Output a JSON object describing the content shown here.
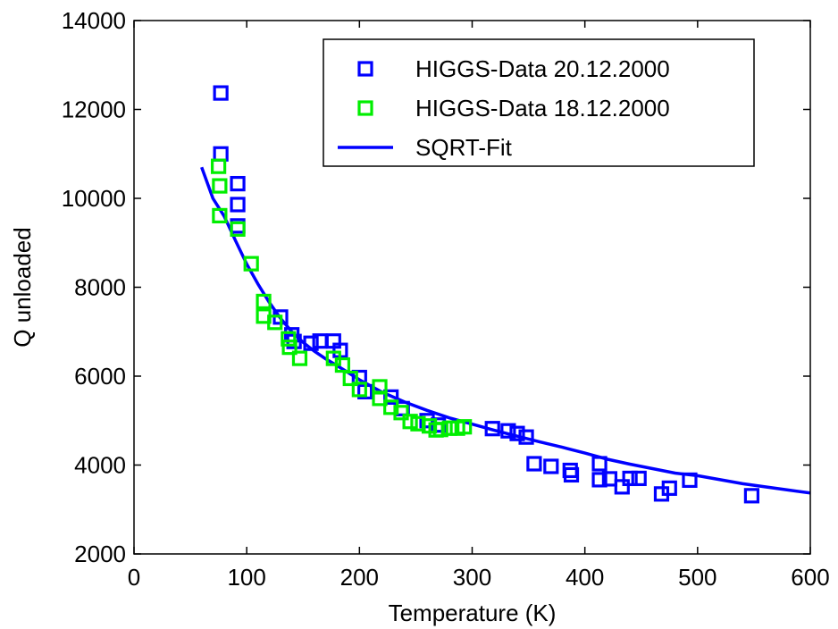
{
  "chart_data": {
    "type": "scatter",
    "xlabel": "Temperature (K)",
    "ylabel": "Q unloaded",
    "xlim": [
      0,
      600
    ],
    "ylim": [
      2000,
      14000
    ],
    "xticks": [
      0,
      100,
      200,
      300,
      400,
      500,
      600
    ],
    "yticks": [
      2000,
      4000,
      6000,
      8000,
      10000,
      12000,
      14000
    ],
    "grid": false,
    "legend_position": "top-right",
    "series": [
      {
        "name": "HIGGS-Data 20.12.2000",
        "kind": "markers",
        "marker": "square",
        "color": "#0000ff",
        "points": [
          [
            77,
            12370
          ],
          [
            77,
            11000
          ],
          [
            92,
            10330
          ],
          [
            92,
            9860
          ],
          [
            92,
            9380
          ],
          [
            130,
            7330
          ],
          [
            140,
            6930
          ],
          [
            142,
            6780
          ],
          [
            157,
            6740
          ],
          [
            165,
            6790
          ],
          [
            177,
            6790
          ],
          [
            183,
            6580
          ],
          [
            200,
            5970
          ],
          [
            205,
            5650
          ],
          [
            228,
            5530
          ],
          [
            238,
            5270
          ],
          [
            260,
            5000
          ],
          [
            270,
            4900
          ],
          [
            318,
            4820
          ],
          [
            332,
            4770
          ],
          [
            340,
            4710
          ],
          [
            348,
            4630
          ],
          [
            355,
            4030
          ],
          [
            370,
            3970
          ],
          [
            387,
            3880
          ],
          [
            388,
            3780
          ],
          [
            413,
            4030
          ],
          [
            413,
            3670
          ],
          [
            422,
            3690
          ],
          [
            433,
            3510
          ],
          [
            440,
            3700
          ],
          [
            448,
            3700
          ],
          [
            468,
            3350
          ],
          [
            475,
            3480
          ],
          [
            493,
            3660
          ],
          [
            548,
            3310
          ]
        ]
      },
      {
        "name": "HIGGS-Data 18.12.2000",
        "kind": "markers",
        "marker": "square",
        "color": "#00ee00",
        "points": [
          [
            75,
            10720
          ],
          [
            76,
            10280
          ],
          [
            76,
            9610
          ],
          [
            92,
            9310
          ],
          [
            104,
            8530
          ],
          [
            115,
            7680
          ],
          [
            115,
            7350
          ],
          [
            125,
            7210
          ],
          [
            137,
            6840
          ],
          [
            138,
            6650
          ],
          [
            147,
            6400
          ],
          [
            177,
            6400
          ],
          [
            185,
            6250
          ],
          [
            192,
            5950
          ],
          [
            200,
            5700
          ],
          [
            218,
            5760
          ],
          [
            218,
            5500
          ],
          [
            228,
            5300
          ],
          [
            237,
            5180
          ],
          [
            245,
            4980
          ],
          [
            252,
            4930
          ],
          [
            262,
            4880
          ],
          [
            268,
            4790
          ],
          [
            272,
            4800
          ],
          [
            280,
            4830
          ],
          [
            287,
            4830
          ],
          [
            293,
            4860
          ]
        ]
      },
      {
        "name": "SQRT-Fit",
        "kind": "line",
        "color": "#0000ff",
        "points": [
          [
            60,
            10700
          ],
          [
            70,
            10000
          ],
          [
            80,
            9600
          ],
          [
            90,
            9050
          ],
          [
            100,
            8520
          ],
          [
            110,
            8070
          ],
          [
            120,
            7660
          ],
          [
            130,
            7300
          ],
          [
            140,
            7000
          ],
          [
            150,
            6760
          ],
          [
            160,
            6560
          ],
          [
            170,
            6390
          ],
          [
            180,
            6240
          ],
          [
            190,
            6080
          ],
          [
            200,
            5920
          ],
          [
            220,
            5640
          ],
          [
            240,
            5420
          ],
          [
            260,
            5230
          ],
          [
            280,
            5060
          ],
          [
            300,
            4920
          ],
          [
            320,
            4780
          ],
          [
            340,
            4650
          ],
          [
            360,
            4520
          ],
          [
            380,
            4400
          ],
          [
            400,
            4270
          ],
          [
            420,
            4130
          ],
          [
            440,
            4020
          ],
          [
            460,
            3920
          ],
          [
            480,
            3820
          ],
          [
            500,
            3760
          ],
          [
            520,
            3670
          ],
          [
            540,
            3580
          ],
          [
            560,
            3510
          ],
          [
            580,
            3440
          ],
          [
            600,
            3370
          ]
        ]
      }
    ]
  }
}
